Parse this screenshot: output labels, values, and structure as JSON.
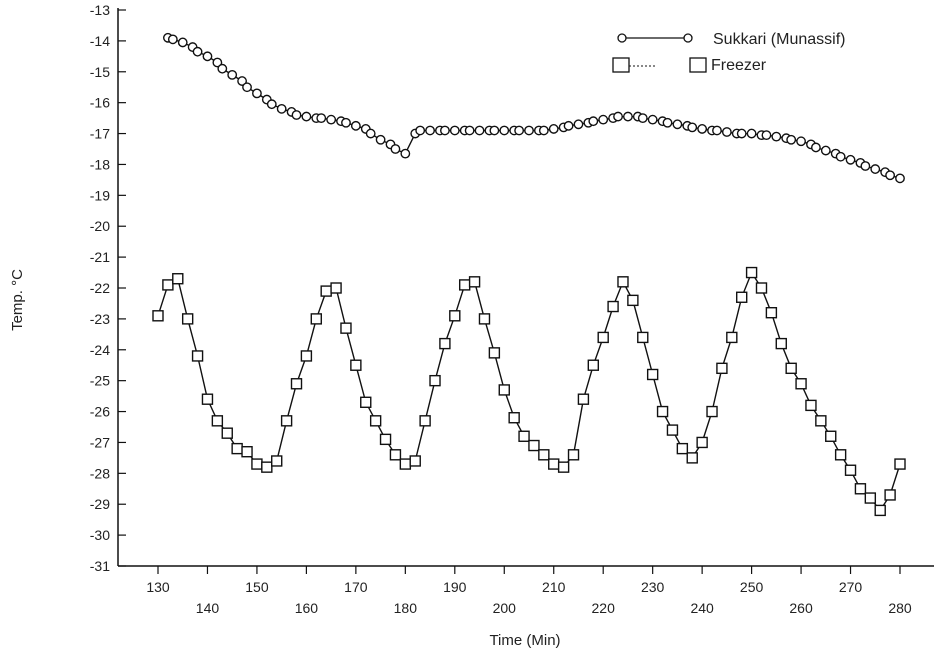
{
  "chart_data": {
    "type": "line",
    "xlabel": "Time (Min)",
    "ylabel": "Temp. °C",
    "xlim": [
      130,
      280
    ],
    "ylim": [
      -31,
      -13
    ],
    "xticks": [
      130,
      140,
      150,
      160,
      170,
      180,
      190,
      200,
      210,
      220,
      230,
      240,
      250,
      260,
      270,
      280
    ],
    "yticks": [
      -13,
      -14,
      -15,
      -16,
      -17,
      -18,
      -19,
      -20,
      -21,
      -22,
      -23,
      -24,
      -25,
      -26,
      -27,
      -28,
      -29,
      -30,
      -31
    ],
    "grid": false,
    "legend_position": "top-right",
    "series": [
      {
        "name": "Sukkari (Munassif)",
        "marker": "circle",
        "line_style": "solid",
        "x": [
          132,
          133,
          135,
          137,
          138,
          140,
          142,
          143,
          145,
          147,
          148,
          150,
          152,
          153,
          155,
          157,
          158,
          160,
          162,
          163,
          165,
          167,
          168,
          170,
          172,
          173,
          175,
          177,
          178,
          180,
          182,
          183,
          185,
          187,
          188,
          190,
          192,
          193,
          195,
          197,
          198,
          200,
          202,
          203,
          205,
          207,
          208,
          210,
          212,
          213,
          215,
          217,
          218,
          220,
          222,
          223,
          225,
          227,
          228,
          230,
          232,
          233,
          235,
          237,
          238,
          240,
          242,
          243,
          245,
          247,
          248,
          250,
          252,
          253,
          255,
          257,
          258,
          260,
          262,
          263,
          265,
          267,
          268,
          270,
          272,
          273,
          275,
          277,
          278,
          280
        ],
        "y": [
          -13.9,
          -13.95,
          -14.05,
          -14.2,
          -14.35,
          -14.5,
          -14.7,
          -14.9,
          -15.1,
          -15.3,
          -15.5,
          -15.7,
          -15.9,
          -16.05,
          -16.2,
          -16.3,
          -16.4,
          -16.45,
          -16.5,
          -16.5,
          -16.55,
          -16.6,
          -16.65,
          -16.75,
          -16.85,
          -17.0,
          -17.2,
          -17.35,
          -17.5,
          -17.65,
          -17.0,
          -16.9,
          -16.9,
          -16.9,
          -16.9,
          -16.9,
          -16.9,
          -16.9,
          -16.9,
          -16.9,
          -16.9,
          -16.9,
          -16.9,
          -16.9,
          -16.9,
          -16.9,
          -16.9,
          -16.85,
          -16.8,
          -16.75,
          -16.7,
          -16.65,
          -16.6,
          -16.55,
          -16.5,
          -16.45,
          -16.45,
          -16.45,
          -16.5,
          -16.55,
          -16.6,
          -16.65,
          -16.7,
          -16.75,
          -16.8,
          -16.85,
          -16.9,
          -16.9,
          -16.95,
          -17.0,
          -17.0,
          -17.0,
          -17.05,
          -17.05,
          -17.1,
          -17.15,
          -17.2,
          -17.25,
          -17.35,
          -17.45,
          -17.55,
          -17.65,
          -17.75,
          -17.85,
          -17.95,
          -18.05,
          -18.15,
          -18.25,
          -18.35,
          -18.45
        ]
      },
      {
        "name": "Freezer",
        "marker": "square",
        "line_style": "solid",
        "x": [
          130,
          132,
          134,
          136,
          138,
          140,
          142,
          144,
          146,
          148,
          150,
          152,
          154,
          156,
          158,
          160,
          162,
          164,
          166,
          168,
          170,
          172,
          174,
          176,
          178,
          180,
          182,
          184,
          186,
          188,
          190,
          192,
          194,
          196,
          198,
          200,
          202,
          204,
          206,
          208,
          210,
          212,
          214,
          216,
          218,
          220,
          222,
          224,
          226,
          228,
          230,
          232,
          234,
          236,
          238,
          240,
          242,
          244,
          246,
          248,
          250,
          252,
          254,
          256,
          258,
          260,
          262,
          264,
          266,
          268,
          270,
          272,
          274,
          276,
          278,
          280
        ],
        "y": [
          -22.9,
          -21.9,
          -21.7,
          -23.0,
          -24.2,
          -25.6,
          -26.3,
          -26.7,
          -27.2,
          -27.3,
          -27.7,
          -27.8,
          -27.6,
          -26.3,
          -25.1,
          -24.2,
          -23.0,
          -22.1,
          -22.0,
          -23.3,
          -24.5,
          -25.7,
          -26.3,
          -26.9,
          -27.4,
          -27.7,
          -27.6,
          -26.3,
          -25.0,
          -23.8,
          -22.9,
          -21.9,
          -21.8,
          -23.0,
          -24.1,
          -25.3,
          -26.2,
          -26.8,
          -27.1,
          -27.4,
          -27.7,
          -27.8,
          -27.4,
          -25.6,
          -24.5,
          -23.6,
          -22.6,
          -21.8,
          -22.4,
          -23.6,
          -24.8,
          -26.0,
          -26.6,
          -27.2,
          -27.5,
          -27.0,
          -26.0,
          -24.6,
          -23.6,
          -22.3,
          -21.5,
          -22.0,
          -22.8,
          -23.8,
          -24.6,
          -25.1,
          -25.8,
          -26.3,
          -26.8,
          -27.4,
          -27.9,
          -28.5,
          -28.8,
          -29.2,
          -28.7,
          -27.7
        ]
      }
    ]
  }
}
